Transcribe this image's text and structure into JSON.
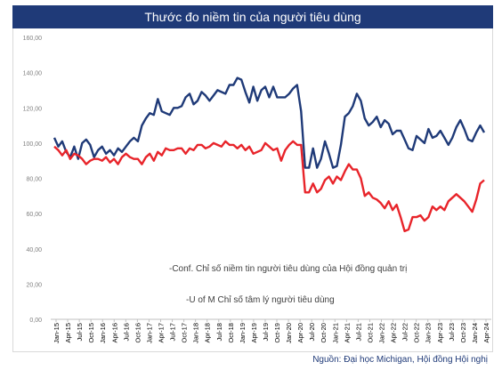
{
  "title": "Thước đo niềm tin của người tiêu dùng",
  "source_note": "Nguồn: Đại học Michigan, Hội đồng Hội nghị",
  "chart_data": {
    "type": "line",
    "ylim": [
      0,
      160
    ],
    "yticks": [
      "0,00",
      "20,00",
      "40,00",
      "60,00",
      "80,00",
      "100,00",
      "120,00",
      "140,00",
      "160,00"
    ],
    "x_labels": [
      "Jan-15",
      "Apr-15",
      "Jul-15",
      "Oct-15",
      "Jan-16",
      "Apr-16",
      "Jul-16",
      "Oct-16",
      "Jan-17",
      "Apr-17",
      "Jul-17",
      "Oct-17",
      "Jan-18",
      "Apr-18",
      "Jul-18",
      "Oct-18",
      "Jan-19",
      "Apr-19",
      "Jul-19",
      "Oct-19",
      "Jan-20",
      "Apr-20",
      "Jul-20",
      "Oct-20",
      "Jan-21",
      "Apr-21",
      "Jul-21",
      "Oct-21",
      "Jan-22",
      "Apr-22",
      "Jul-22",
      "Oct-22",
      "Jan-23",
      "Apr-23",
      "Jul-23",
      "Oct-23",
      "Jan-24",
      "Apr-24"
    ],
    "grid": false,
    "series": [
      {
        "name": "-Conf. Chỉ số niềm tin người tiêu dùng của Hội đồng quản trị",
        "color": "#1f3a78",
        "values": [
          103,
          98,
          101,
          95,
          92,
          98,
          91,
          100,
          102,
          99,
          92,
          96,
          98,
          94,
          96,
          93,
          97,
          95,
          98,
          101,
          103,
          101,
          110,
          114,
          117,
          116,
          125,
          118,
          117,
          116,
          120,
          120,
          121,
          126,
          128,
          122,
          124,
          129,
          127,
          124,
          127,
          130,
          129,
          128,
          133,
          133,
          137,
          136,
          129,
          123,
          132,
          124,
          130,
          132,
          126,
          132,
          126,
          126,
          126,
          128,
          131,
          133,
          118,
          86,
          86,
          97,
          86,
          91,
          101,
          94,
          86,
          87,
          99,
          115,
          117,
          121,
          128,
          124,
          114,
          110,
          112,
          115,
          109,
          113,
          111,
          105,
          107,
          107,
          102,
          97,
          96,
          104,
          102,
          100,
          108,
          103,
          104,
          107,
          103,
          99,
          103,
          109,
          113,
          108,
          102,
          101,
          106,
          110,
          106
        ]
      },
      {
        "name": "-U of M Chỉ số tâm lý người tiêu dùng",
        "color": "#e8242a",
        "values": [
          98,
          96,
          93,
          96,
          91,
          94,
          93,
          91,
          88,
          90,
          91,
          91,
          90,
          92,
          89,
          91,
          88,
          92,
          94,
          92,
          91,
          91,
          88,
          92,
          94,
          90,
          95,
          93,
          97,
          96,
          96,
          97,
          97,
          94,
          97,
          96,
          99,
          99,
          97,
          98,
          100,
          99,
          98,
          101,
          99,
          99,
          97,
          99,
          96,
          98,
          94,
          95,
          96,
          100,
          98,
          96,
          97,
          90,
          96,
          99,
          101,
          99,
          99,
          72,
          72,
          77,
          72,
          74,
          79,
          81,
          77,
          81,
          79,
          84,
          88,
          85,
          85,
          80,
          70,
          72,
          69,
          68,
          66,
          63,
          67,
          62,
          65,
          58,
          50,
          51,
          58,
          58,
          59,
          56,
          58,
          64,
          62,
          64,
          62,
          67,
          69,
          71,
          69,
          67,
          64,
          61,
          68,
          77,
          79
        ]
      }
    ]
  }
}
